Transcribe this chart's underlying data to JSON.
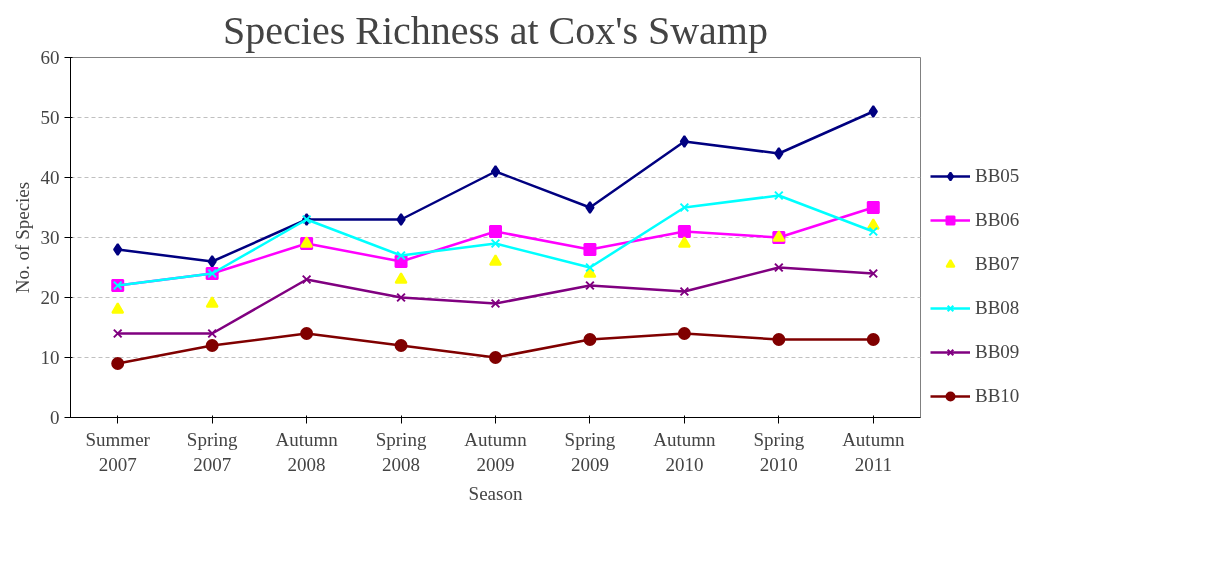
{
  "chart_data": {
    "type": "line",
    "title": "Species Richness at Cox's Swamp",
    "xlabel": "Season",
    "ylabel": "No. of Species",
    "categories": [
      "Summer 2007",
      "Spring 2007",
      "Autumn 2008",
      "Spring 2008",
      "Autumn 2009",
      "Spring 2009",
      "Autumn 2010",
      "Spring 2010",
      "Autumn 2011"
    ],
    "series": [
      {
        "name": "BB05",
        "color": "#000080",
        "marker": "diamond",
        "values": [
          28,
          26,
          33,
          33,
          41,
          35,
          46,
          44,
          51
        ]
      },
      {
        "name": "BB06",
        "color": "#ff00ff",
        "marker": "square",
        "values": [
          22,
          24,
          29,
          26,
          31,
          28,
          31,
          30,
          35
        ]
      },
      {
        "name": "BB07",
        "color": "#ffff00",
        "marker": "triangle",
        "type": "scatter",
        "values": [
          18,
          19,
          29,
          23,
          26,
          24,
          29,
          30,
          32
        ]
      },
      {
        "name": "BB08",
        "color": "#00ffff",
        "marker": "cross",
        "values": [
          22,
          24,
          33,
          27,
          29,
          25,
          35,
          37,
          31
        ]
      },
      {
        "name": "BB09",
        "color": "#800080",
        "marker": "cross",
        "values": [
          14,
          14,
          23,
          20,
          19,
          22,
          21,
          25,
          24
        ]
      },
      {
        "name": "BB10",
        "color": "#800000",
        "marker": "circle",
        "values": [
          9,
          12,
          14,
          12,
          10,
          13,
          14,
          13,
          13
        ]
      }
    ],
    "ylim": [
      0,
      60
    ],
    "yticks": [
      0,
      10,
      20,
      30,
      40,
      50,
      60
    ],
    "grid": "y",
    "legend": "right"
  }
}
